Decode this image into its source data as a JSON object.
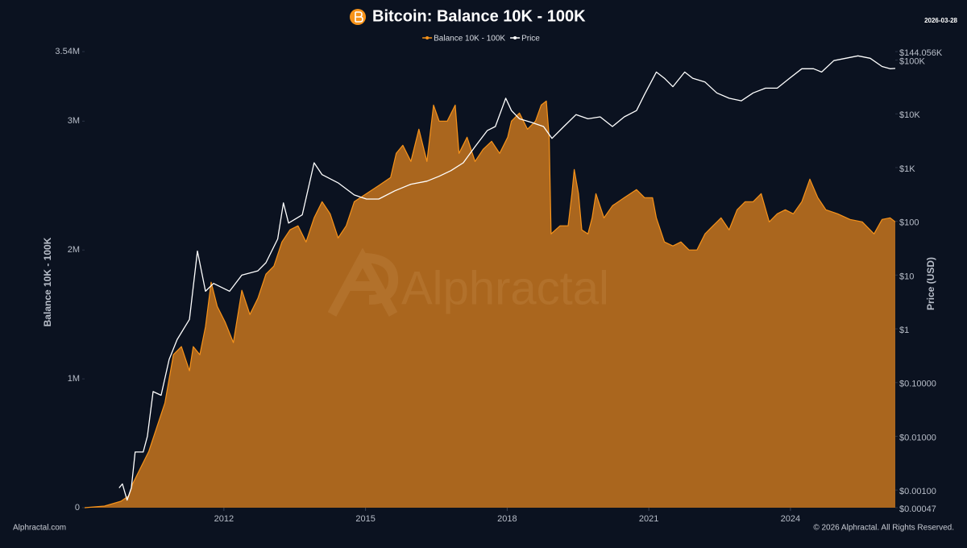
{
  "chart_data": {
    "type": "line",
    "title": "Bitcoin: Balance 10K - 100K",
    "date": "2026-03-28",
    "ylabel": "Balance 10K - 100K",
    "y2label": "Price (USD)",
    "watermark": "Alphractal",
    "footer_left": "Alphractal.com",
    "footer_right": "© 2026 Alphractal. All Rights Reserved.",
    "xlim": [
      2009.05,
      2026.22
    ],
    "xticks": [
      2012,
      2015,
      2018,
      2021,
      2024
    ],
    "ylim": [
      0,
      3540000
    ],
    "yticks": [
      0,
      {
        "value": 1000000,
        "label": "1M"
      },
      {
        "value": 2000000,
        "label": "2M"
      },
      {
        "value": 3000000,
        "label": "3M"
      },
      {
        "value": 3540000,
        "label": "3.54M"
      }
    ],
    "y2scale": "log",
    "y2lim": [
      0.00047,
      144056
    ],
    "y2ticks": [
      {
        "value": 0.00047,
        "label": "$0.00047"
      },
      {
        "value": 0.001,
        "label": "$0.00100"
      },
      {
        "value": 0.01,
        "label": "$0.01000"
      },
      {
        "value": 0.1,
        "label": "$0.10000"
      },
      {
        "value": 1,
        "label": "$1"
      },
      {
        "value": 10,
        "label": "$10"
      },
      {
        "value": 100,
        "label": "$100"
      },
      {
        "value": 1000,
        "label": "$1K"
      },
      {
        "value": 10000,
        "label": "$10K"
      },
      {
        "value": 100000,
        "label": "$100K"
      },
      {
        "value": 144056,
        "label": "$144.056K"
      }
    ],
    "series": [
      {
        "name": "Balance 10K - 100K",
        "color": "#f7931a",
        "fill": "#b36b1f",
        "area": true,
        "x": [
          2009.05,
          2009.47,
          2009.82,
          2009.99,
          2010.07,
          2010.24,
          2010.41,
          2010.58,
          2010.75,
          2010.93,
          2011.1,
          2011.27,
          2011.35,
          2011.49,
          2011.61,
          2011.73,
          2011.86,
          2012.03,
          2012.2,
          2012.38,
          2012.55,
          2012.72,
          2012.89,
          2013.06,
          2013.23,
          2013.4,
          2013.57,
          2013.74,
          2013.91,
          2014.08,
          2014.25,
          2014.42,
          2014.59,
          2014.76,
          2015.02,
          2015.28,
          2015.53,
          2015.65,
          2015.79,
          2015.96,
          2016.13,
          2016.3,
          2016.44,
          2016.56,
          2016.73,
          2016.9,
          2016.98,
          2017.15,
          2017.32,
          2017.49,
          2017.67,
          2017.84,
          2018.01,
          2018.09,
          2018.26,
          2018.43,
          2018.6,
          2018.72,
          2018.83,
          2018.89,
          2018.93,
          2019.12,
          2019.29,
          2019.37,
          2019.42,
          2019.51,
          2019.58,
          2019.71,
          2019.8,
          2019.88,
          2020.05,
          2020.23,
          2020.48,
          2020.74,
          2020.91,
          2021.08,
          2021.16,
          2021.33,
          2021.51,
          2021.68,
          2021.85,
          2022.02,
          2022.19,
          2022.36,
          2022.53,
          2022.7,
          2022.87,
          2023.04,
          2023.21,
          2023.38,
          2023.55,
          2023.72,
          2023.89,
          2024.06,
          2024.24,
          2024.41,
          2024.58,
          2024.75,
          2025.0,
          2025.26,
          2025.52,
          2025.77,
          2025.94,
          2026.11,
          2026.22
        ],
        "values": [
          0,
          12500,
          50000,
          93750,
          187500,
          312500,
          437500,
          625000,
          812500,
          1187500,
          1250000,
          1062500,
          1250000,
          1187500,
          1406250,
          1750000,
          1562500,
          1437500,
          1281250,
          1687500,
          1500000,
          1625000,
          1812500,
          1875000,
          2062500,
          2156250,
          2187500,
          2062500,
          2250000,
          2375000,
          2281250,
          2093750,
          2187500,
          2375000,
          2437500,
          2500000,
          2562500,
          2750000,
          2812500,
          2687500,
          2937500,
          2687500,
          3125000,
          3000000,
          3000000,
          3125000,
          2750000,
          2875000,
          2687500,
          2781250,
          2843750,
          2750000,
          2875000,
          3000000,
          3062500,
          2937500,
          3000000,
          3125000,
          3156250,
          2875000,
          2125000,
          2187500,
          2187500,
          2437500,
          2625000,
          2437500,
          2156250,
          2125000,
          2250000,
          2437500,
          2250000,
          2343750,
          2406250,
          2468750,
          2406250,
          2406250,
          2250000,
          2062500,
          2031250,
          2062500,
          2000000,
          2000000,
          2125000,
          2187500,
          2250000,
          2156250,
          2312500,
          2375000,
          2375000,
          2437500,
          2218750,
          2281250,
          2312500,
          2281250,
          2375000,
          2550000,
          2406250,
          2312500,
          2281250,
          2237500,
          2218750,
          2125000,
          2237500,
          2250000,
          2218750
        ]
      },
      {
        "name": "Price",
        "color": "#ffffff",
        "axis": "y2",
        "x": [
          2009.78,
          2009.85,
          2009.95,
          2010.04,
          2010.12,
          2010.29,
          2010.38,
          2010.5,
          2010.67,
          2010.84,
          2011.01,
          2011.27,
          2011.44,
          2011.61,
          2011.78,
          2011.95,
          2012.12,
          2012.38,
          2012.72,
          2012.89,
          2013.14,
          2013.26,
          2013.37,
          2013.66,
          2013.91,
          2014.08,
          2014.42,
          2014.76,
          2015.02,
          2015.28,
          2015.62,
          2015.96,
          2016.3,
          2016.56,
          2016.81,
          2017.07,
          2017.32,
          2017.58,
          2017.75,
          2017.97,
          2018.09,
          2018.26,
          2018.52,
          2018.77,
          2018.95,
          2019.2,
          2019.46,
          2019.71,
          2019.97,
          2020.23,
          2020.48,
          2020.74,
          2020.91,
          2021.16,
          2021.33,
          2021.51,
          2021.76,
          2021.93,
          2022.19,
          2022.44,
          2022.7,
          2022.96,
          2023.21,
          2023.47,
          2023.72,
          2023.98,
          2024.24,
          2024.49,
          2024.66,
          2024.92,
          2025.17,
          2025.43,
          2025.69,
          2025.94,
          2026.11,
          2026.22
        ],
        "values": [
          0.0011,
          0.0013,
          0.00065,
          0.0011,
          0.0051,
          0.0051,
          0.01,
          0.068,
          0.058,
          0.27,
          0.63,
          1.5,
          28,
          5,
          7,
          5.9,
          5,
          10,
          12,
          17,
          47,
          220,
          93,
          132,
          1230,
          740,
          520,
          310,
          260,
          260,
          370,
          490,
          560,
          690,
          880,
          1230,
          2450,
          4900,
          5800,
          19500,
          11500,
          8100,
          6900,
          5800,
          3500,
          5800,
          9700,
          8100,
          8800,
          5800,
          8800,
          11500,
          23000,
          60000,
          46000,
          32000,
          60000,
          46000,
          39000,
          24500,
          19500,
          17500,
          24500,
          30000,
          30000,
          46000,
          69000,
          69000,
          60000,
          98000,
          108000,
          120000,
          108000,
          76000,
          69000,
          70000
        ]
      }
    ]
  }
}
